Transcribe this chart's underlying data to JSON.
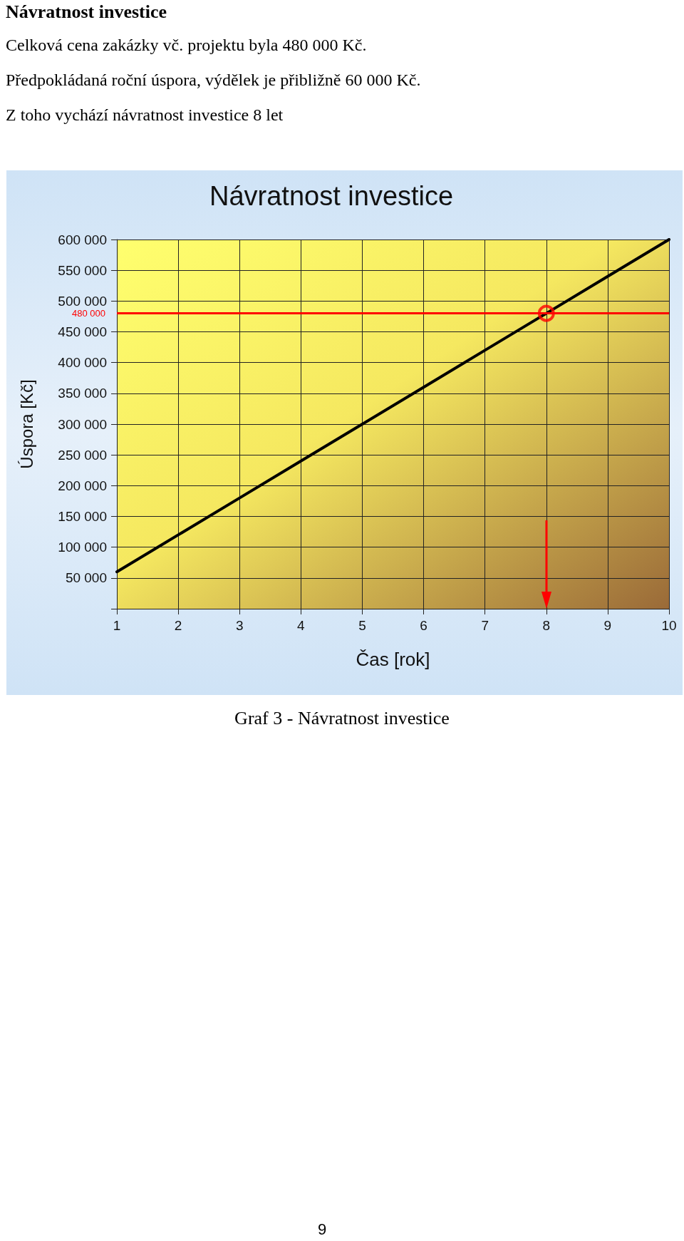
{
  "chart_data": {
    "type": "line",
    "title": "Návratnost investice",
    "xlabel": "Čas [rok]",
    "ylabel": "Úspora [Kč]",
    "annotations": [
      "Návratnost investice",
      "Celková cena zakázky vč. projektu byla 480 000 Kč.",
      "Předpokládaná roční úspora, výdělek je přibližně 60 000 Kč.",
      "Z toho vychází návratnost investice 8 let",
      "Graf 3 - Návratnost investice",
      "9"
    ],
    "series": [
      {
        "type": "line",
        "color": "#000000",
        "x": [
          1,
          2,
          3,
          4,
          5,
          6,
          7,
          8,
          9,
          10
        ],
        "values": [
          60000,
          120000,
          180000,
          240000,
          300000,
          360000,
          420000,
          480000,
          540000,
          600000
        ],
        "marker": "none"
      },
      {
        "type": "scatter",
        "color": "#ff0000",
        "x": [
          8
        ],
        "values": [
          480000
        ],
        "marker": "circle"
      }
    ],
    "xlim": [
      1,
      10
    ],
    "xticks": [
      1,
      2,
      3,
      4,
      5,
      6,
      7,
      8,
      9,
      10
    ],
    "ylim": [
      0,
      600000
    ],
    "yticks": [
      {
        "value": 0,
        "label": null
      },
      50000,
      100000,
      150000,
      200000,
      250000,
      300000,
      350000,
      400000,
      450000,
      500000,
      550000,
      600000
    ],
    "ref_lines": [
      {
        "axis": "y",
        "value": 480000,
        "label": "480 000",
        "color": "#ff0000"
      }
    ],
    "grid": true
  }
}
